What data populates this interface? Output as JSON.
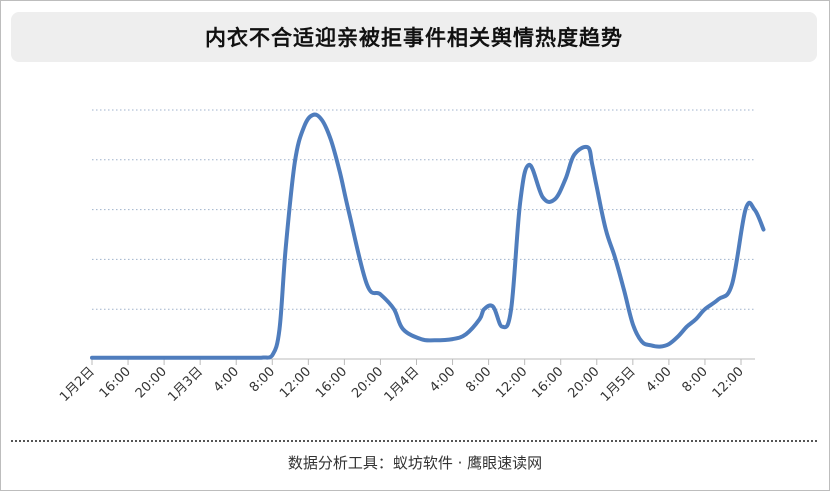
{
  "title": "内衣不合适迎亲被拒事件相关舆情热度趋势",
  "footer": "数据分析工具：蚁坊软件 · 鹰眼速读网",
  "colors": {
    "line": "#4f7dbd",
    "grid": "#9fb2cc",
    "axis": "#bbbbbb",
    "tick_text": "#333333"
  },
  "chart_data": {
    "type": "line",
    "title": "内衣不合适迎亲被拒事件相关舆情热度趋势",
    "xlabel": "",
    "ylabel": "",
    "grid": true,
    "y_axis_labels": false,
    "ylim": [
      0,
      100
    ],
    "x_tick_labels": [
      "1月2日",
      "16:00",
      "20:00",
      "1月3日",
      "4:00",
      "8:00",
      "12:00",
      "16:00",
      "20:00",
      "1月4日",
      "4:00",
      "8:00",
      "12:00",
      "16:00",
      "20:00",
      "1月5日",
      "4:00",
      "8:00",
      "12:00"
    ],
    "x_tick_hours": [
      12,
      16,
      20,
      24,
      28,
      32,
      36,
      40,
      44,
      48,
      52,
      56,
      60,
      64,
      68,
      72,
      76,
      80,
      84
    ],
    "series": [
      {
        "x_hours": [
          12,
          14,
          16,
          18,
          20,
          22,
          24,
          26,
          28,
          30,
          31,
          32,
          32.8,
          33.5,
          34.5,
          35.5,
          36.5,
          37.5,
          38.5,
          39.5,
          40.5,
          42.5,
          44,
          45.5,
          46.5,
          48.5,
          50,
          52,
          53.5,
          55,
          55.5,
          56.5,
          57.5,
          58.5,
          59.5,
          60.5,
          62,
          63.3,
          64.5,
          65.5,
          67,
          67.5,
          68,
          69,
          70,
          71,
          72,
          73,
          74,
          75,
          76,
          77,
          78,
          79,
          80,
          81.5,
          83,
          84.5,
          85.5,
          86.5
        ],
        "values": [
          0.5,
          0.5,
          0.5,
          0.5,
          0.5,
          0.5,
          0.5,
          0.5,
          0.5,
          0.5,
          0.6,
          1.5,
          12,
          45,
          79,
          93,
          98,
          96,
          88,
          75,
          59,
          30,
          26,
          20,
          12,
          8,
          7.5,
          8,
          10,
          16,
          20,
          21,
          13,
          20,
          63,
          78,
          65,
          64,
          72,
          82,
          85,
          78,
          69,
          52,
          41,
          28,
          14,
          7,
          5.5,
          5,
          6,
          9,
          13,
          16,
          20,
          24,
          30,
          60,
          60,
          52
        ]
      }
    ]
  }
}
